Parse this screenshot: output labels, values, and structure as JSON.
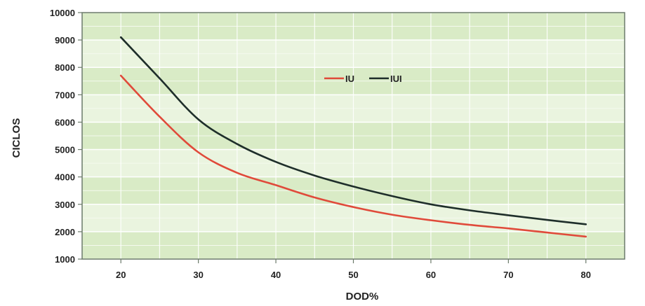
{
  "chart_data": {
    "type": "line",
    "title": "",
    "xlabel": "DOD%",
    "ylabel": "CICLOS",
    "xlim": [
      15,
      85
    ],
    "ylim": [
      1000,
      10000
    ],
    "x_ticks": [
      20,
      30,
      40,
      50,
      60,
      70,
      80
    ],
    "y_ticks": [
      1000,
      2000,
      3000,
      4000,
      5000,
      6000,
      7000,
      8000,
      9000,
      10000
    ],
    "grid": true,
    "legend_position": "top-center",
    "series": [
      {
        "name": "IU",
        "color": "#e04a3a",
        "x": [
          20,
          25,
          30,
          35,
          40,
          45,
          50,
          55,
          60,
          65,
          70,
          75,
          80
        ],
        "y": [
          7700,
          6200,
          4900,
          4150,
          3700,
          3250,
          2900,
          2620,
          2420,
          2250,
          2120,
          1970,
          1820
        ]
      },
      {
        "name": "IUI",
        "color": "#1e2e2a",
        "x": [
          20,
          25,
          30,
          35,
          40,
          45,
          50,
          55,
          60,
          65,
          70,
          75,
          80
        ],
        "y": [
          9100,
          7600,
          6100,
          5200,
          4550,
          4050,
          3650,
          3300,
          3000,
          2780,
          2600,
          2430,
          2270
        ]
      }
    ]
  }
}
